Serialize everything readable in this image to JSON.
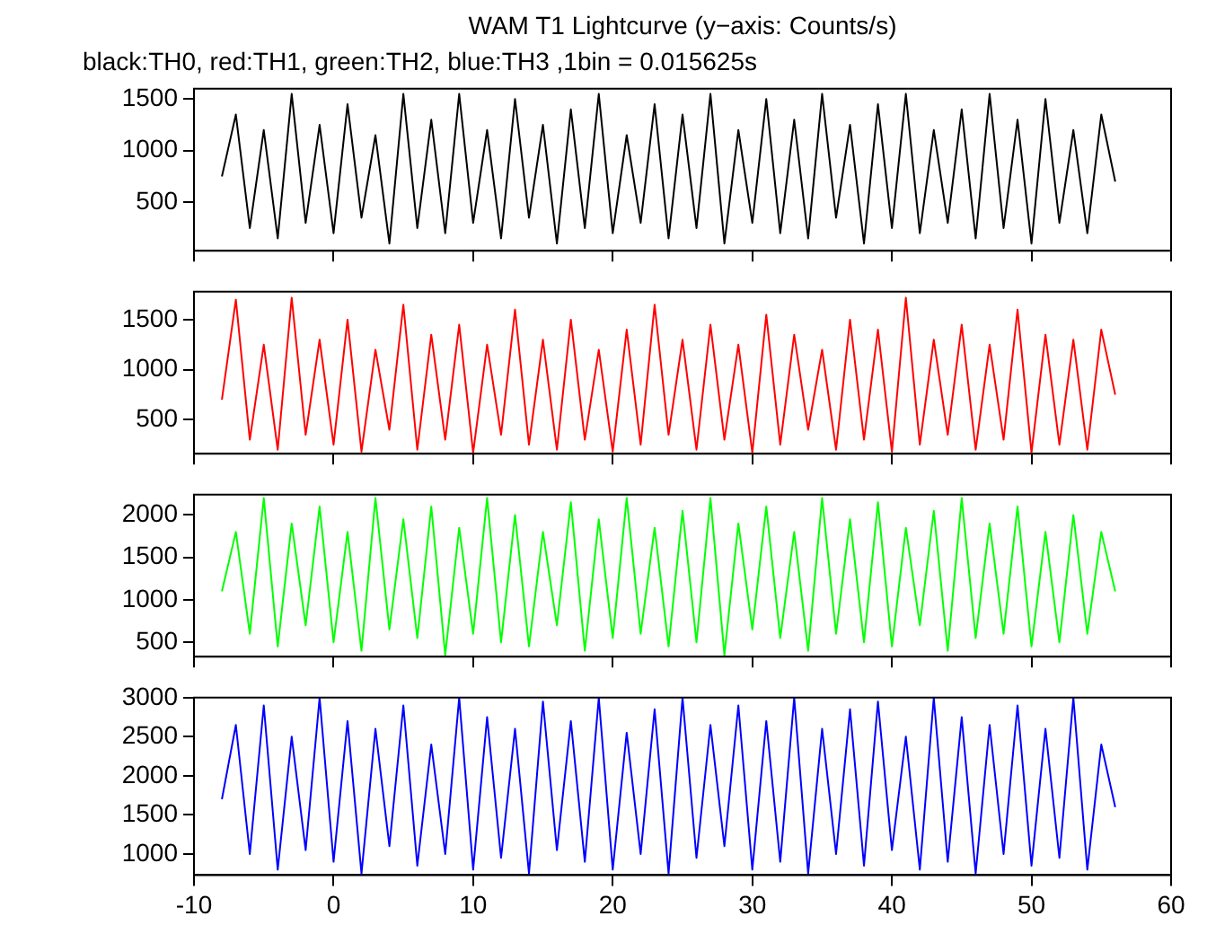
{
  "chart_data": [
    {
      "type": "line",
      "title": "WAM T1 Lightcurve (y−axis: Counts/s)",
      "subtitle": "black:TH0, red:TH1, green:TH2, blue:TH3 ,1bin = 0.015625s",
      "grid": false,
      "tick_labels": "y",
      "xlim": [
        -10,
        60
      ],
      "xticks": [
        -10,
        0,
        10,
        20,
        30,
        40,
        50,
        60
      ],
      "ylim": [
        30,
        1600
      ],
      "yticks": [
        500,
        1000,
        1500
      ],
      "x": [
        -8,
        -7,
        -6,
        -5,
        -4,
        -3,
        -2,
        -1,
        0,
        1,
        2,
        3,
        4,
        5,
        6,
        7,
        8,
        9,
        10,
        11,
        12,
        13,
        14,
        15,
        16,
        17,
        18,
        19,
        20,
        21,
        22,
        23,
        24,
        25,
        26,
        27,
        28,
        29,
        30,
        31,
        32,
        33,
        34,
        35,
        36,
        37,
        38,
        39,
        40,
        41,
        42,
        43,
        44,
        45,
        46,
        47,
        48,
        49,
        50,
        51,
        52,
        53,
        54,
        55,
        56
      ],
      "series": [
        {
          "color": "#000000",
          "values": [
            750,
            1350,
            250,
            1200,
            150,
            1550,
            300,
            1250,
            200,
            1450,
            350,
            1150,
            100,
            1550,
            250,
            1300,
            200,
            1550,
            300,
            1200,
            150,
            1500,
            350,
            1250,
            100,
            1400,
            250,
            1550,
            200,
            1150,
            300,
            1450,
            150,
            1350,
            250,
            1550,
            100,
            1200,
            300,
            1500,
            200,
            1300,
            150,
            1550,
            350,
            1250,
            100,
            1450,
            250,
            1550,
            200,
            1200,
            300,
            1400,
            150,
            1550,
            250,
            1300,
            100,
            1500,
            300,
            1200,
            200,
            1350,
            700
          ]
        }
      ]
    },
    {
      "type": "line",
      "grid": false,
      "tick_labels": "y",
      "xlim": [
        -10,
        60
      ],
      "xticks": [
        -10,
        0,
        10,
        20,
        30,
        40,
        50,
        60
      ],
      "ylim": [
        160,
        1780
      ],
      "yticks": [
        500,
        1000,
        1500
      ],
      "x": [
        -8,
        -7,
        -6,
        -5,
        -4,
        -3,
        -2,
        -1,
        0,
        1,
        2,
        3,
        4,
        5,
        6,
        7,
        8,
        9,
        10,
        11,
        12,
        13,
        14,
        15,
        16,
        17,
        18,
        19,
        20,
        21,
        22,
        23,
        24,
        25,
        26,
        27,
        28,
        29,
        30,
        31,
        32,
        33,
        34,
        35,
        36,
        37,
        38,
        39,
        40,
        41,
        42,
        43,
        44,
        45,
        46,
        47,
        48,
        49,
        50,
        51,
        52,
        53,
        54,
        55,
        56
      ],
      "series": [
        {
          "color": "#ff0000",
          "values": [
            700,
            1700,
            300,
            1250,
            200,
            1720,
            350,
            1300,
            250,
            1500,
            180,
            1200,
            400,
            1650,
            200,
            1350,
            300,
            1450,
            170,
            1250,
            350,
            1600,
            250,
            1300,
            200,
            1500,
            300,
            1200,
            180,
            1400,
            250,
            1650,
            350,
            1300,
            200,
            1450,
            300,
            1250,
            170,
            1550,
            250,
            1350,
            400,
            1200,
            200,
            1500,
            300,
            1400,
            180,
            1720,
            250,
            1300,
            350,
            1450,
            200,
            1250,
            300,
            1600,
            170,
            1350,
            250,
            1300,
            200,
            1400,
            750
          ]
        }
      ]
    },
    {
      "type": "line",
      "grid": false,
      "tick_labels": "y",
      "xlim": [
        -10,
        60
      ],
      "xticks": [
        -10,
        0,
        10,
        20,
        30,
        40,
        50,
        60
      ],
      "ylim": [
        330,
        2240
      ],
      "yticks": [
        500,
        1000,
        1500,
        2000
      ],
      "x": [
        -8,
        -7,
        -6,
        -5,
        -4,
        -3,
        -2,
        -1,
        0,
        1,
        2,
        3,
        4,
        5,
        6,
        7,
        8,
        9,
        10,
        11,
        12,
        13,
        14,
        15,
        16,
        17,
        18,
        19,
        20,
        21,
        22,
        23,
        24,
        25,
        26,
        27,
        28,
        29,
        30,
        31,
        32,
        33,
        34,
        35,
        36,
        37,
        38,
        39,
        40,
        41,
        42,
        43,
        44,
        45,
        46,
        47,
        48,
        49,
        50,
        51,
        52,
        53,
        54,
        55,
        56
      ],
      "series": [
        {
          "color": "#00ff00",
          "values": [
            1100,
            1800,
            600,
            2200,
            450,
            1900,
            700,
            2100,
            500,
            1800,
            400,
            2200,
            650,
            1950,
            550,
            2100,
            350,
            1850,
            600,
            2200,
            500,
            2000,
            450,
            1800,
            700,
            2150,
            400,
            1950,
            550,
            2200,
            600,
            1850,
            450,
            2050,
            500,
            2200,
            350,
            1900,
            650,
            2100,
            550,
            1800,
            400,
            2200,
            600,
            1950,
            500,
            2150,
            450,
            1850,
            700,
            2050,
            400,
            2200,
            550,
            1900,
            600,
            2100,
            450,
            1800,
            500,
            2000,
            600,
            1800,
            1100
          ]
        }
      ]
    },
    {
      "type": "line",
      "grid": false,
      "xlim": [
        -10,
        60
      ],
      "xticks": [
        -10,
        0,
        10,
        20,
        30,
        40,
        50,
        60
      ],
      "ylim": [
        730,
        3000
      ],
      "yticks": [
        1000,
        1500,
        2000,
        2500,
        3000
      ],
      "x": [
        -8,
        -7,
        -6,
        -5,
        -4,
        -3,
        -2,
        -1,
        0,
        1,
        2,
        3,
        4,
        5,
        6,
        7,
        8,
        9,
        10,
        11,
        12,
        13,
        14,
        15,
        16,
        17,
        18,
        19,
        20,
        21,
        22,
        23,
        24,
        25,
        26,
        27,
        28,
        29,
        30,
        31,
        32,
        33,
        34,
        35,
        36,
        37,
        38,
        39,
        40,
        41,
        42,
        43,
        44,
        45,
        46,
        47,
        48,
        49,
        50,
        51,
        52,
        53,
        54,
        55,
        56
      ],
      "series": [
        {
          "color": "#0000ff",
          "values": [
            1700,
            2650,
            1000,
            2900,
            800,
            2500,
            1050,
            3000,
            900,
            2700,
            750,
            2600,
            1100,
            2900,
            850,
            2400,
            1000,
            3000,
            800,
            2750,
            950,
            2600,
            750,
            2950,
            1050,
            2700,
            900,
            3000,
            800,
            2550,
            1000,
            2850,
            750,
            3000,
            950,
            2650,
            1100,
            2900,
            800,
            2700,
            900,
            3000,
            750,
            2600,
            1000,
            2850,
            850,
            2950,
            1050,
            2500,
            800,
            3000,
            900,
            2750,
            750,
            2650,
            1000,
            2900,
            850,
            2600,
            950,
            3000,
            800,
            2400,
            1600
          ]
        }
      ]
    }
  ]
}
